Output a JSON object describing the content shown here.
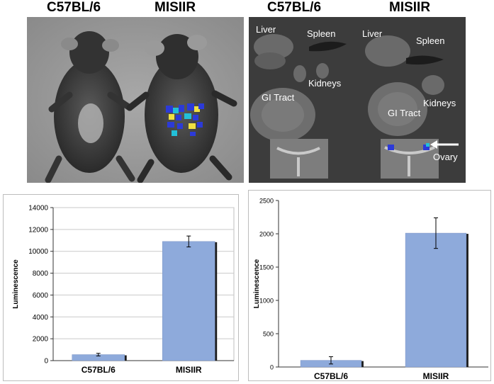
{
  "mice_photo": {
    "header_left": "C57BL/6",
    "header_right": "MISIIR"
  },
  "organs_photo": {
    "header_left": "C57BL/6",
    "header_right": "MISIIR",
    "labels": {
      "liver_left": "Liver",
      "spleen_left": "Spleen",
      "kidneys_left": "Kidneys",
      "gi_left": "GI Tract",
      "liver_right": "Liver",
      "spleen_right": "Spleen",
      "kidneys_right": "Kidneys",
      "gi_right": "GI Tract",
      "ovary_right": "Ovary"
    }
  },
  "chart_data": [
    {
      "type": "bar",
      "categories": [
        "C57BL/6",
        "MISIIR"
      ],
      "values": [
        550,
        10900
      ],
      "errors": [
        120,
        500
      ],
      "ylabel": "Luminescence",
      "xlabel": "",
      "title": "",
      "ylim": [
        0,
        14000
      ],
      "yticks": [
        "0",
        "2000",
        "4000",
        "6000",
        "8000",
        "10000",
        "12000",
        "14000"
      ],
      "bar_color": "#8eaadb",
      "grid": true
    },
    {
      "type": "bar",
      "categories": [
        "C57BL/6",
        "MISIIR"
      ],
      "values": [
        100,
        2010
      ],
      "errors": [
        55,
        230
      ],
      "ylabel": "Luminescence",
      "xlabel": "",
      "title": "",
      "ylim": [
        0,
        2500
      ],
      "yticks": [
        "0",
        "500",
        "1000",
        "1500",
        "2000",
        "2500"
      ],
      "bar_color": "#8eaadb",
      "grid": false
    }
  ]
}
